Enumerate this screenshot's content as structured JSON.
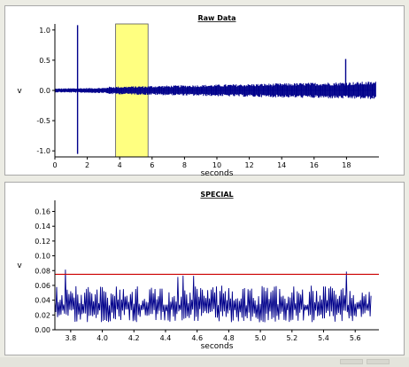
{
  "chart_data": [
    {
      "type": "line",
      "title": "Raw Data",
      "xlabel": "seconds",
      "ylabel": "v",
      "xlim": [
        0,
        20
      ],
      "ylim": [
        -1.1,
        1.1
      ],
      "x_ticks": [
        0,
        2,
        4,
        6,
        8,
        10,
        12,
        14,
        16,
        18
      ],
      "y_ticks": [
        -1.0,
        -0.5,
        0.0,
        0.5,
        1.0
      ],
      "x_tick_labels": [
        "0",
        "2",
        "4",
        "6",
        "8",
        "10",
        "12",
        "14",
        "16",
        "18"
      ],
      "y_tick_labels": [
        "-1.0",
        "-0.5",
        "0.0",
        "0.5",
        "1.0"
      ],
      "series_color": "#00008b",
      "highlight_region": {
        "x": [
          3.75,
          5.75
        ],
        "color": "#ffff80"
      },
      "signal": {
        "x_range": [
          0,
          19.8
        ],
        "envelope_start": 0.03,
        "envelope_end": 0.1,
        "spikes": [
          {
            "x": 1.4,
            "min": -1.05,
            "max": 1.08
          },
          {
            "x": 17.95,
            "max": 0.52
          }
        ]
      }
    },
    {
      "type": "line",
      "title": "SPECIAL",
      "xlabel": "seconds",
      "ylabel": "v",
      "xlim": [
        3.7,
        5.75
      ],
      "ylim": [
        0,
        0.175
      ],
      "x_ticks": [
        3.8,
        4.0,
        4.2,
        4.4,
        4.6,
        4.8,
        5.0,
        5.2,
        5.4,
        5.6
      ],
      "y_ticks": [
        0,
        0.02,
        0.04,
        0.06,
        0.08,
        0.1,
        0.12,
        0.14,
        0.16
      ],
      "x_tick_labels": [
        "3.8",
        "4.0",
        "4.2",
        "4.4",
        "4.6",
        "4.8",
        "5.0",
        "5.2",
        "5.4",
        "5.6"
      ],
      "y_tick_labels": [
        "0.00",
        "0.02",
        "0.04",
        "0.06",
        "0.08",
        "0.10",
        "0.12",
        "0.14",
        "0.16"
      ],
      "series_color": "#00008b",
      "threshold": {
        "y": 0.075,
        "color": "#cc0000"
      },
      "signal": {
        "x_range": [
          3.7,
          5.7
        ],
        "baseline": 0.033,
        "typical_peak": 0.06,
        "max_peak": 0.082
      }
    }
  ],
  "colors": {
    "background": "#ecece4",
    "panel": "#ffffff",
    "axis": "#000000"
  }
}
